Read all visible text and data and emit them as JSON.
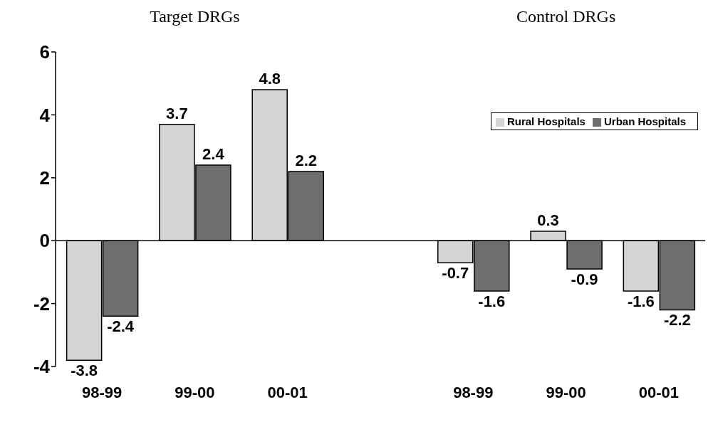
{
  "chart_data": {
    "type": "bar",
    "annotations": [
      "Target DRGs",
      "Control DRGs"
    ],
    "categories": [
      "98-99",
      "99-00",
      "00-01",
      null,
      "98-99",
      "99-00",
      "00-01"
    ],
    "series": [
      {
        "name": "Rural Hospitals",
        "color": "#d4d4d4",
        "values": [
          -3.8,
          3.7,
          4.8,
          null,
          -0.7,
          0.3,
          -1.6
        ]
      },
      {
        "name": "Urban Hospitals",
        "color": "#6e6e6e",
        "values": [
          -2.4,
          2.4,
          2.2,
          null,
          -1.6,
          -0.9,
          -2.2
        ]
      }
    ],
    "ylim": [
      -4,
      6
    ],
    "yticks": [
      -4,
      -2,
      0,
      2,
      4,
      6
    ],
    "ref_lines": [
      {
        "axis": "y",
        "value": 0,
        "color": "#000000"
      }
    ],
    "data_labels": true,
    "legend": "top right"
  }
}
